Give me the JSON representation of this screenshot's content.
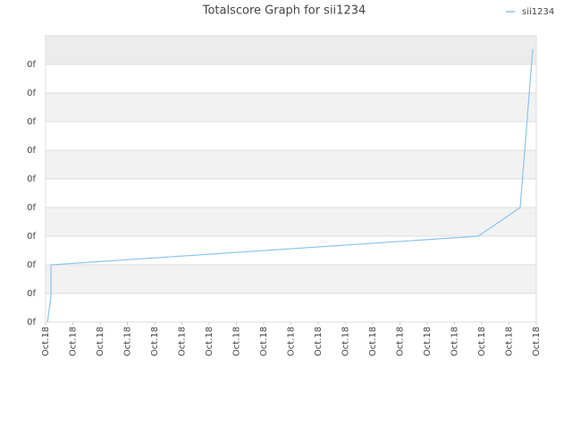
{
  "chart_data": {
    "type": "line",
    "title": "Totalscore Graph for sii1234",
    "x": [
      0.07,
      0.2,
      0.2,
      15.87,
      17.41,
      17.87
    ],
    "series": [
      {
        "name": "sii1234",
        "color": "#8cc4ee",
        "values": [
          0,
          0.94,
          2,
          3,
          4,
          9.53
        ]
      }
    ],
    "xlim": [
      0,
      18
    ],
    "xticks": [
      {
        "value": 0,
        "label": "Oct.18"
      },
      {
        "value": 1,
        "label": "Oct.18"
      },
      {
        "value": 2,
        "label": "Oct.18"
      },
      {
        "value": 3,
        "label": "Oct.18"
      },
      {
        "value": 4,
        "label": "Oct.18"
      },
      {
        "value": 5,
        "label": "Oct.18"
      },
      {
        "value": 6,
        "label": "Oct.18"
      },
      {
        "value": 7,
        "label": "Oct.18"
      },
      {
        "value": 8,
        "label": "Oct.18"
      },
      {
        "value": 9,
        "label": "Oct.18"
      },
      {
        "value": 10,
        "label": "Oct.18"
      },
      {
        "value": 11,
        "label": "Oct.18"
      },
      {
        "value": 12,
        "label": "Oct.18"
      },
      {
        "value": 13,
        "label": "Oct.18"
      },
      {
        "value": 14,
        "label": "Oct.18"
      },
      {
        "value": 15,
        "label": "Oct.18"
      },
      {
        "value": 16,
        "label": "Oct.18"
      },
      {
        "value": 17,
        "label": "Oct.18"
      },
      {
        "value": 18,
        "label": "Oct.18"
      }
    ],
    "ylim": [
      0,
      10
    ],
    "yticks": [
      {
        "value": 0,
        "label": "0f"
      },
      {
        "value": 1,
        "label": "0f"
      },
      {
        "value": 2,
        "label": "0f"
      },
      {
        "value": 3,
        "label": "0f"
      },
      {
        "value": 4,
        "label": "0f"
      },
      {
        "value": 5,
        "label": "0f"
      },
      {
        "value": 6,
        "label": "0f"
      },
      {
        "value": 7,
        "label": "0f"
      },
      {
        "value": 8,
        "label": "0f"
      },
      {
        "value": 9,
        "label": "0f"
      }
    ],
    "grid": true,
    "legend": "top-right"
  }
}
